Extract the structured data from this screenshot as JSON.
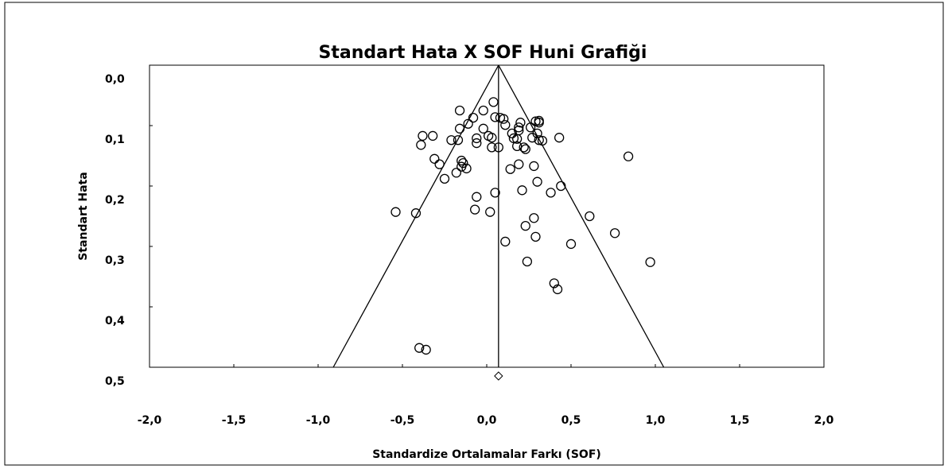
{
  "chart_data": {
    "type": "scatter",
    "title": "Standart Hata X SOF Huni Grafiği",
    "x_label": "Standardize Ortalamalar Farkı (SOF)",
    "y_label": "Standart Hata",
    "xlim": [
      -2,
      2
    ],
    "ylim": [
      0,
      0.5
    ],
    "y_reversed": true,
    "xticks": [
      {
        "value": -2,
        "label": "-2,0"
      },
      {
        "value": -1.5,
        "label": "-1,5"
      },
      {
        "value": -1,
        "label": "-1,0"
      },
      {
        "value": -0.5,
        "label": "-0,5"
      },
      {
        "value": 0,
        "label": "0,0"
      },
      {
        "value": 0.5,
        "label": "0,5"
      },
      {
        "value": 1,
        "label": "1,0"
      },
      {
        "value": 1.5,
        "label": "1,5"
      },
      {
        "value": 2,
        "label": "2,0"
      }
    ],
    "yticks": [
      {
        "value": 0,
        "label": "0,0"
      },
      {
        "value": 0.1,
        "label": "0,1"
      },
      {
        "value": 0.2,
        "label": "0,2"
      },
      {
        "value": 0.3,
        "label": "0,3"
      },
      {
        "value": 0.4,
        "label": "0,4"
      },
      {
        "value": 0.5,
        "label": "0,5"
      }
    ],
    "summary_effect": 0.07,
    "color": "#000000",
    "x": [
      -0.02,
      0.04,
      0.05,
      0.08,
      0.1,
      0.11,
      -0.16,
      -0.08,
      -0.11,
      -0.16,
      -0.17,
      -0.21,
      -0.38,
      -0.32,
      -0.39,
      -0.31,
      -0.28,
      -0.25,
      -0.18,
      -0.15,
      -0.15,
      -0.14,
      -0.12,
      -0.06,
      -0.02,
      0.01,
      0.03,
      0.03,
      0.07,
      -0.06,
      0.05,
      -0.06,
      -0.07,
      0.02,
      -0.54,
      -0.42,
      0.15,
      0.16,
      0.18,
      0.19,
      0.2,
      0.19,
      0.26,
      0.27,
      0.3,
      0.29,
      0.31,
      0.33,
      0.31,
      0.43,
      0.18,
      0.23,
      0.22,
      0.31,
      0.14,
      0.19,
      0.28,
      0.3,
      0.21,
      0.44,
      0.38,
      0.28,
      0.23,
      0.29,
      0.11,
      0.5,
      0.61,
      0.76,
      0.97,
      0.24,
      0.4,
      0.42,
      0.84,
      -0.4,
      -0.36
    ],
    "values": [
      0.075,
      0.061,
      0.086,
      0.087,
      0.089,
      0.099,
      0.075,
      0.087,
      0.097,
      0.105,
      0.124,
      0.124,
      0.117,
      0.117,
      0.132,
      0.155,
      0.164,
      0.188,
      0.178,
      0.168,
      0.158,
      0.162,
      0.171,
      0.121,
      0.105,
      0.117,
      0.12,
      0.136,
      0.136,
      0.129,
      0.211,
      0.218,
      0.239,
      0.243,
      0.243,
      0.245,
      0.113,
      0.121,
      0.122,
      0.108,
      0.095,
      0.103,
      0.103,
      0.12,
      0.113,
      0.093,
      0.095,
      0.125,
      0.124,
      0.12,
      0.134,
      0.139,
      0.136,
      0.092,
      0.172,
      0.164,
      0.167,
      0.193,
      0.207,
      0.2,
      0.211,
      0.253,
      0.266,
      0.284,
      0.292,
      0.296,
      0.25,
      0.278,
      0.326,
      0.325,
      0.361,
      0.371,
      0.151,
      0.468,
      0.471
    ]
  }
}
